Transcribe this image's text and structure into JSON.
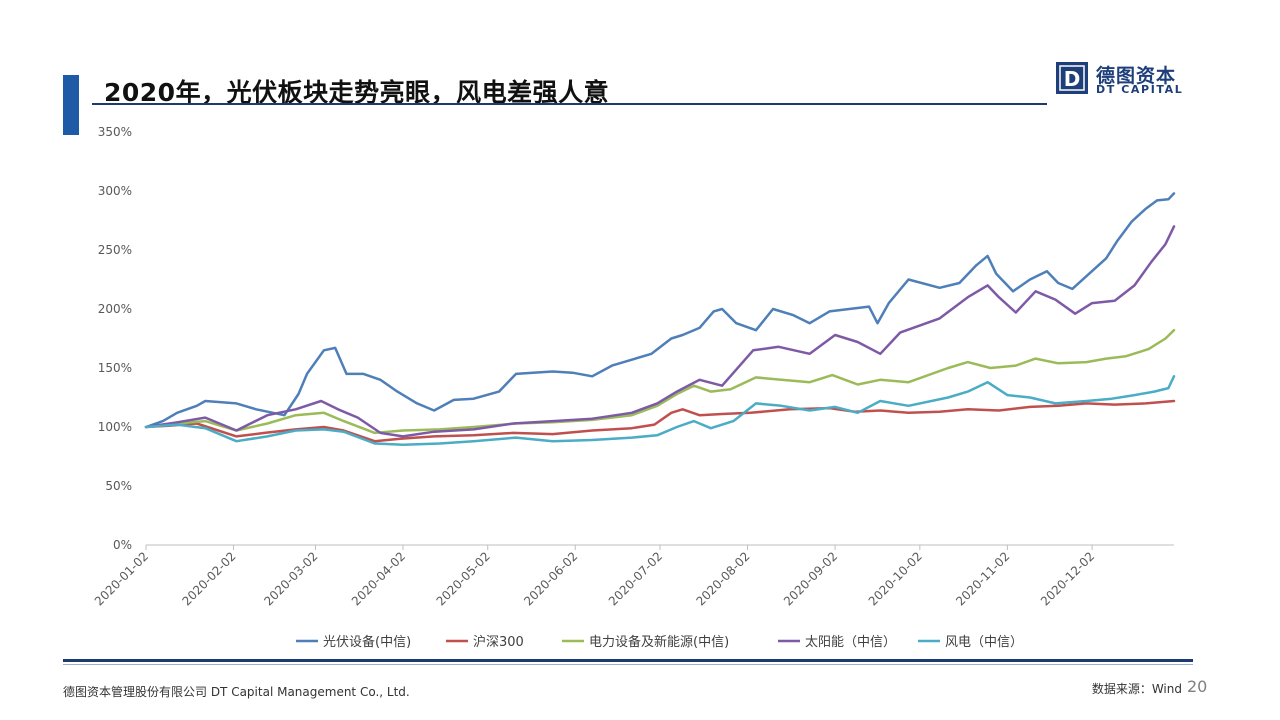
{
  "slide": {
    "title": "2020年，光伏板块走势亮眼，风电差强人意",
    "page_number": "20"
  },
  "logo": {
    "cn": "德图资本",
    "en": "DT CAPITAL",
    "mark_letter": "D"
  },
  "footer": {
    "company": "德图资本管理股份有限公司 DT Capital Management Co., Ltd.",
    "source": "数据来源：Wind"
  },
  "colors": {
    "accent": "#1f5aa6",
    "navy": "#1e3a6e",
    "series_pv_equipment": "#4e7fb8",
    "series_hs300": "#c0504d",
    "series_power_equipment": "#9bbb59",
    "series_solar": "#7e5aa6",
    "series_wind": "#4bacc6"
  },
  "chart_data": {
    "type": "line",
    "title": "",
    "xlabel": "",
    "ylabel": "",
    "ylim": [
      0,
      3.5
    ],
    "y_format": "percent",
    "y_ticks": [
      0,
      0.5,
      1.0,
      1.5,
      2.0,
      2.5,
      3.0,
      3.5
    ],
    "y_tick_labels": [
      "0%",
      "50%",
      "100%",
      "150%",
      "200%",
      "250%",
      "300%",
      "350%"
    ],
    "x_ticks": [
      "2020-01-02",
      "2020-02-02",
      "2020-03-02",
      "2020-04-02",
      "2020-05-02",
      "2020-06-02",
      "2020-07-02",
      "2020-08-02",
      "2020-09-02",
      "2020-10-02",
      "2020-11-02",
      "2020-12-02"
    ],
    "x_range": [
      "2020-01-02",
      "2020-12-31"
    ],
    "grid": false,
    "legend_position": "bottom",
    "series": [
      {
        "name": "光伏设备(中信)",
        "color": "#4e7fb8",
        "points": [
          [
            "2020-01-02",
            1.0
          ],
          [
            "2020-01-08",
            1.05
          ],
          [
            "2020-01-13",
            1.12
          ],
          [
            "2020-01-20",
            1.18
          ],
          [
            "2020-01-23",
            1.22
          ],
          [
            "2020-02-03",
            1.2
          ],
          [
            "2020-02-10",
            1.15
          ],
          [
            "2020-02-20",
            1.1
          ],
          [
            "2020-02-25",
            1.28
          ],
          [
            "2020-02-28",
            1.45
          ],
          [
            "2020-03-05",
            1.65
          ],
          [
            "2020-03-09",
            1.67
          ],
          [
            "2020-03-13",
            1.45
          ],
          [
            "2020-03-19",
            1.45
          ],
          [
            "2020-03-25",
            1.4
          ],
          [
            "2020-03-31",
            1.3
          ],
          [
            "2020-04-07",
            1.2
          ],
          [
            "2020-04-13",
            1.14
          ],
          [
            "2020-04-20",
            1.23
          ],
          [
            "2020-04-27",
            1.24
          ],
          [
            "2020-05-06",
            1.3
          ],
          [
            "2020-05-12",
            1.45
          ],
          [
            "2020-05-18",
            1.46
          ],
          [
            "2020-05-25",
            1.47
          ],
          [
            "2020-06-01",
            1.46
          ],
          [
            "2020-06-08",
            1.43
          ],
          [
            "2020-06-15",
            1.52
          ],
          [
            "2020-06-22",
            1.57
          ],
          [
            "2020-06-29",
            1.62
          ],
          [
            "2020-07-06",
            1.75
          ],
          [
            "2020-07-10",
            1.78
          ],
          [
            "2020-07-16",
            1.84
          ],
          [
            "2020-07-21",
            1.98
          ],
          [
            "2020-07-24",
            2.0
          ],
          [
            "2020-07-29",
            1.88
          ],
          [
            "2020-08-05",
            1.82
          ],
          [
            "2020-08-11",
            2.0
          ],
          [
            "2020-08-18",
            1.95
          ],
          [
            "2020-08-24",
            1.88
          ],
          [
            "2020-08-31",
            1.98
          ],
          [
            "2020-09-07",
            2.0
          ],
          [
            "2020-09-14",
            2.02
          ],
          [
            "2020-09-17",
            1.88
          ],
          [
            "2020-09-21",
            2.05
          ],
          [
            "2020-09-28",
            2.25
          ],
          [
            "2020-10-09",
            2.18
          ],
          [
            "2020-10-16",
            2.22
          ],
          [
            "2020-10-22",
            2.37
          ],
          [
            "2020-10-26",
            2.45
          ],
          [
            "2020-10-29",
            2.3
          ],
          [
            "2020-11-04",
            2.15
          ],
          [
            "2020-11-10",
            2.25
          ],
          [
            "2020-11-16",
            2.32
          ],
          [
            "2020-11-20",
            2.22
          ],
          [
            "2020-11-25",
            2.17
          ],
          [
            "2020-12-01",
            2.3
          ],
          [
            "2020-12-07",
            2.43
          ],
          [
            "2020-12-11",
            2.58
          ],
          [
            "2020-12-16",
            2.74
          ],
          [
            "2020-12-21",
            2.85
          ],
          [
            "2020-12-25",
            2.92
          ],
          [
            "2020-12-29",
            2.93
          ],
          [
            "2020-12-31",
            2.98
          ]
        ]
      },
      {
        "name": "沪深300",
        "color": "#c0504d",
        "points": [
          [
            "2020-01-02",
            1.0
          ],
          [
            "2020-01-10",
            1.01
          ],
          [
            "2020-01-20",
            1.03
          ],
          [
            "2020-02-03",
            0.92
          ],
          [
            "2020-02-13",
            0.95
          ],
          [
            "2020-02-24",
            0.98
          ],
          [
            "2020-03-05",
            1.0
          ],
          [
            "2020-03-12",
            0.97
          ],
          [
            "2020-03-23",
            0.88
          ],
          [
            "2020-04-01",
            0.9
          ],
          [
            "2020-04-13",
            0.92
          ],
          [
            "2020-04-27",
            0.93
          ],
          [
            "2020-05-11",
            0.95
          ],
          [
            "2020-05-25",
            0.94
          ],
          [
            "2020-06-08",
            0.97
          ],
          [
            "2020-06-22",
            0.99
          ],
          [
            "2020-06-30",
            1.02
          ],
          [
            "2020-07-06",
            1.12
          ],
          [
            "2020-07-10",
            1.15
          ],
          [
            "2020-07-16",
            1.1
          ],
          [
            "2020-07-24",
            1.11
          ],
          [
            "2020-08-03",
            1.12
          ],
          [
            "2020-08-17",
            1.15
          ],
          [
            "2020-08-31",
            1.16
          ],
          [
            "2020-09-09",
            1.13
          ],
          [
            "2020-09-18",
            1.14
          ],
          [
            "2020-09-28",
            1.12
          ],
          [
            "2020-10-09",
            1.13
          ],
          [
            "2020-10-19",
            1.15
          ],
          [
            "2020-10-30",
            1.14
          ],
          [
            "2020-11-10",
            1.17
          ],
          [
            "2020-11-20",
            1.18
          ],
          [
            "2020-11-30",
            1.2
          ],
          [
            "2020-12-10",
            1.19
          ],
          [
            "2020-12-21",
            1.2
          ],
          [
            "2020-12-31",
            1.22
          ]
        ]
      },
      {
        "name": "电力设备及新能源(中信)",
        "color": "#9bbb59",
        "points": [
          [
            "2020-01-02",
            1.0
          ],
          [
            "2020-01-13",
            1.03
          ],
          [
            "2020-01-23",
            1.05
          ],
          [
            "2020-02-03",
            0.97
          ],
          [
            "2020-02-14",
            1.03
          ],
          [
            "2020-02-24",
            1.1
          ],
          [
            "2020-03-05",
            1.12
          ],
          [
            "2020-03-12",
            1.05
          ],
          [
            "2020-03-23",
            0.95
          ],
          [
            "2020-04-02",
            0.97
          ],
          [
            "2020-04-15",
            0.98
          ],
          [
            "2020-04-27",
            1.0
          ],
          [
            "2020-05-12",
            1.03
          ],
          [
            "2020-05-25",
            1.04
          ],
          [
            "2020-06-08",
            1.06
          ],
          [
            "2020-06-22",
            1.1
          ],
          [
            "2020-07-01",
            1.18
          ],
          [
            "2020-07-08",
            1.28
          ],
          [
            "2020-07-14",
            1.35
          ],
          [
            "2020-07-20",
            1.3
          ],
          [
            "2020-07-27",
            1.32
          ],
          [
            "2020-08-05",
            1.42
          ],
          [
            "2020-08-14",
            1.4
          ],
          [
            "2020-08-24",
            1.38
          ],
          [
            "2020-09-01",
            1.44
          ],
          [
            "2020-09-10",
            1.36
          ],
          [
            "2020-09-18",
            1.4
          ],
          [
            "2020-09-28",
            1.38
          ],
          [
            "2020-10-12",
            1.5
          ],
          [
            "2020-10-19",
            1.55
          ],
          [
            "2020-10-27",
            1.5
          ],
          [
            "2020-11-05",
            1.52
          ],
          [
            "2020-11-12",
            1.58
          ],
          [
            "2020-11-20",
            1.54
          ],
          [
            "2020-11-30",
            1.55
          ],
          [
            "2020-12-07",
            1.58
          ],
          [
            "2020-12-14",
            1.6
          ],
          [
            "2020-12-22",
            1.66
          ],
          [
            "2020-12-28",
            1.75
          ],
          [
            "2020-12-31",
            1.82
          ]
        ]
      },
      {
        "name": "太阳能（中信）",
        "color": "#7e5aa6",
        "points": [
          [
            "2020-01-02",
            1.0
          ],
          [
            "2020-01-13",
            1.04
          ],
          [
            "2020-01-23",
            1.08
          ],
          [
            "2020-02-03",
            0.97
          ],
          [
            "2020-02-14",
            1.1
          ],
          [
            "2020-02-24",
            1.15
          ],
          [
            "2020-03-04",
            1.22
          ],
          [
            "2020-03-10",
            1.15
          ],
          [
            "2020-03-17",
            1.08
          ],
          [
            "2020-03-25",
            0.95
          ],
          [
            "2020-04-02",
            0.92
          ],
          [
            "2020-04-13",
            0.96
          ],
          [
            "2020-04-27",
            0.98
          ],
          [
            "2020-05-11",
            1.03
          ],
          [
            "2020-05-25",
            1.05
          ],
          [
            "2020-06-08",
            1.07
          ],
          [
            "2020-06-22",
            1.12
          ],
          [
            "2020-07-01",
            1.2
          ],
          [
            "2020-07-08",
            1.3
          ],
          [
            "2020-07-16",
            1.4
          ],
          [
            "2020-07-24",
            1.35
          ],
          [
            "2020-08-04",
            1.65
          ],
          [
            "2020-08-13",
            1.68
          ],
          [
            "2020-08-24",
            1.62
          ],
          [
            "2020-09-02",
            1.78
          ],
          [
            "2020-09-10",
            1.72
          ],
          [
            "2020-09-18",
            1.62
          ],
          [
            "2020-09-25",
            1.8
          ],
          [
            "2020-10-09",
            1.92
          ],
          [
            "2020-10-19",
            2.1
          ],
          [
            "2020-10-26",
            2.2
          ],
          [
            "2020-10-30",
            2.1
          ],
          [
            "2020-11-05",
            1.97
          ],
          [
            "2020-11-12",
            2.15
          ],
          [
            "2020-11-19",
            2.08
          ],
          [
            "2020-11-26",
            1.96
          ],
          [
            "2020-12-02",
            2.05
          ],
          [
            "2020-12-10",
            2.07
          ],
          [
            "2020-12-17",
            2.2
          ],
          [
            "2020-12-23",
            2.4
          ],
          [
            "2020-12-28",
            2.55
          ],
          [
            "2020-12-31",
            2.7
          ]
        ]
      },
      {
        "name": "风电（中信）",
        "color": "#4bacc6",
        "points": [
          [
            "2020-01-02",
            1.0
          ],
          [
            "2020-01-13",
            1.02
          ],
          [
            "2020-01-23",
            0.99
          ],
          [
            "2020-02-03",
            0.88
          ],
          [
            "2020-02-14",
            0.92
          ],
          [
            "2020-02-24",
            0.97
          ],
          [
            "2020-03-05",
            0.98
          ],
          [
            "2020-03-12",
            0.96
          ],
          [
            "2020-03-23",
            0.86
          ],
          [
            "2020-04-02",
            0.85
          ],
          [
            "2020-04-15",
            0.86
          ],
          [
            "2020-04-27",
            0.88
          ],
          [
            "2020-05-12",
            0.91
          ],
          [
            "2020-05-25",
            0.88
          ],
          [
            "2020-06-08",
            0.89
          ],
          [
            "2020-06-22",
            0.91
          ],
          [
            "2020-07-01",
            0.93
          ],
          [
            "2020-07-08",
            1.0
          ],
          [
            "2020-07-14",
            1.05
          ],
          [
            "2020-07-20",
            0.99
          ],
          [
            "2020-07-28",
            1.05
          ],
          [
            "2020-08-05",
            1.2
          ],
          [
            "2020-08-14",
            1.18
          ],
          [
            "2020-08-24",
            1.14
          ],
          [
            "2020-09-02",
            1.17
          ],
          [
            "2020-09-10",
            1.12
          ],
          [
            "2020-09-18",
            1.22
          ],
          [
            "2020-09-28",
            1.18
          ],
          [
            "2020-10-12",
            1.25
          ],
          [
            "2020-10-19",
            1.3
          ],
          [
            "2020-10-26",
            1.38
          ],
          [
            "2020-11-02",
            1.27
          ],
          [
            "2020-11-10",
            1.25
          ],
          [
            "2020-11-19",
            1.2
          ],
          [
            "2020-11-30",
            1.22
          ],
          [
            "2020-12-09",
            1.24
          ],
          [
            "2020-12-17",
            1.27
          ],
          [
            "2020-12-24",
            1.3
          ],
          [
            "2020-12-29",
            1.33
          ],
          [
            "2020-12-31",
            1.43
          ]
        ]
      }
    ]
  }
}
